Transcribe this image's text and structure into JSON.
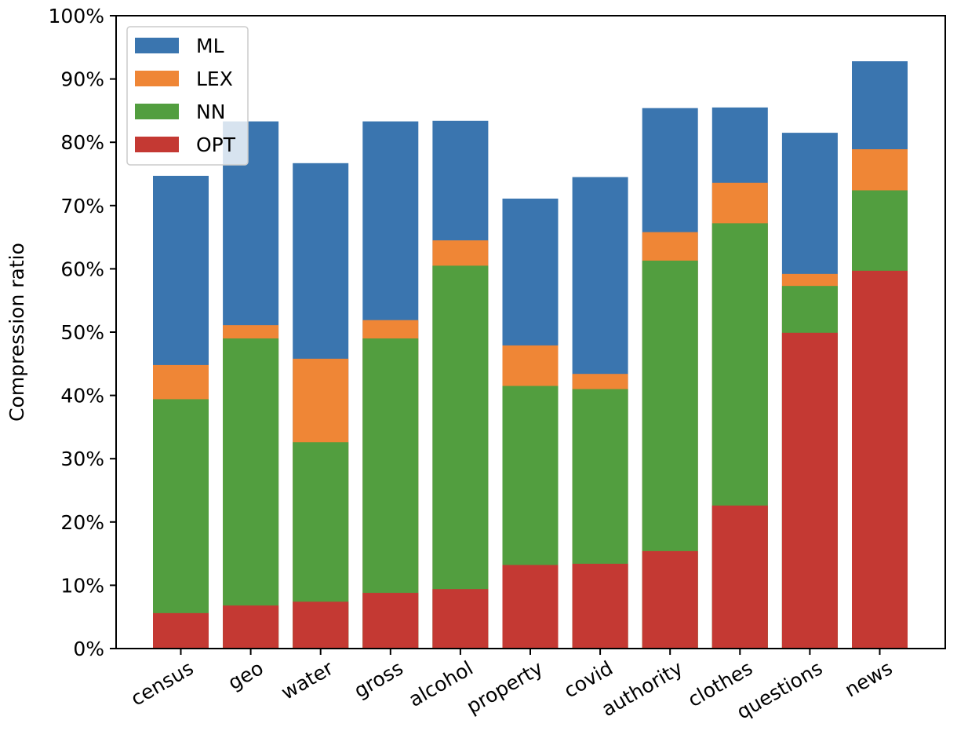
{
  "chart_data": {
    "type": "bar",
    "stacked": false,
    "overlay": true,
    "title": "",
    "xlabel": "",
    "ylabel": "Compression ratio",
    "ylim": [
      0,
      100
    ],
    "y_tick_format": "percent",
    "y_ticks": [
      "0%",
      "10%",
      "20%",
      "30%",
      "40%",
      "50%",
      "60%",
      "70%",
      "80%",
      "90%",
      "100%"
    ],
    "legend_position": "top-left",
    "grid": false,
    "categories": [
      "census",
      "geo",
      "water",
      "gross",
      "alcohol",
      "property",
      "covid",
      "authority",
      "clothes",
      "questions",
      "news"
    ],
    "series": [
      {
        "name": "ML",
        "color": "#3a75af",
        "values": [
          74.7,
          83.3,
          76.7,
          83.3,
          83.4,
          71.1,
          74.5,
          85.4,
          85.5,
          81.5,
          92.8
        ]
      },
      {
        "name": "LEX",
        "color": "#ef8636",
        "values": [
          44.8,
          51.1,
          45.8,
          51.9,
          64.5,
          47.9,
          43.4,
          65.8,
          73.6,
          59.2,
          78.9
        ]
      },
      {
        "name": "NN",
        "color": "#529e3f",
        "values": [
          39.4,
          49.0,
          32.6,
          49.0,
          60.5,
          41.5,
          41.0,
          61.3,
          67.2,
          57.3,
          72.4
        ]
      },
      {
        "name": "OPT",
        "color": "#c43933",
        "values": [
          5.6,
          6.8,
          7.4,
          8.8,
          9.4,
          13.2,
          13.4,
          15.4,
          22.6,
          49.9,
          59.7
        ]
      }
    ]
  }
}
